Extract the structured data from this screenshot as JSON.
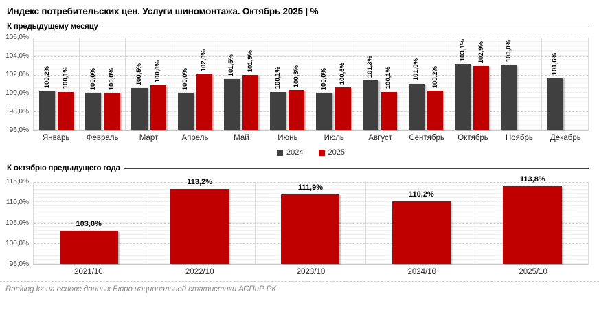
{
  "title": "Индекс потребительских цен. Услуги шиномонтажа. Октябрь 2025 | %",
  "footer": "Ranking.kz на основе данных Бюро национальной статистики АСПиР РК",
  "colors": {
    "series_2024": "#404040",
    "series_2025": "#C00000",
    "gridline": "#cfcfcf",
    "axis_text": "#404040"
  },
  "chart_data": [
    {
      "type": "bar",
      "title": "К предыдущему месяцу",
      "categories": [
        "Январь",
        "Февраль",
        "Март",
        "Апрель",
        "Май",
        "Июнь",
        "Июль",
        "Август",
        "Сентябрь",
        "Октябрь",
        "Ноябрь",
        "Декабрь"
      ],
      "series": [
        {
          "name": "2024",
          "color": "#404040",
          "values": [
            100.2,
            100.0,
            100.5,
            100.0,
            101.5,
            100.1,
            100.0,
            101.3,
            101.0,
            103.1,
            103.0,
            101.6
          ],
          "labels": [
            "100,2%",
            "100,0%",
            "100,5%",
            "100,0%",
            "101,5%",
            "100,1%",
            "100,0%",
            "101,3%",
            "101,0%",
            "103,1%",
            "103,0%",
            "101,6%"
          ]
        },
        {
          "name": "2025",
          "color": "#C00000",
          "values": [
            100.1,
            100.0,
            100.8,
            102.0,
            101.9,
            100.3,
            100.6,
            100.1,
            100.2,
            102.9,
            null,
            null
          ],
          "labels": [
            "100,1%",
            "100,0%",
            "100,8%",
            "102,0%",
            "101,9%",
            "100,3%",
            "100,6%",
            "100,1%",
            "100,2%",
            "102,9%",
            null,
            null
          ]
        }
      ],
      "ylim": [
        96,
        106
      ],
      "yticks": [
        "106,0%",
        "104,0%",
        "102,0%",
        "100,0%",
        "98,0%",
        "96,0%"
      ],
      "legend": [
        "2024",
        "2025"
      ],
      "legend_position": "bottom-center",
      "grid": "on"
    },
    {
      "type": "bar",
      "title": "К октябрю предыдущего года",
      "categories": [
        "2021/10",
        "2022/10",
        "2023/10",
        "2024/10",
        "2025/10"
      ],
      "values": [
        103.0,
        113.2,
        111.9,
        110.2,
        113.8
      ],
      "labels": [
        "103,0%",
        "113,2%",
        "111,9%",
        "110,2%",
        "113,8%"
      ],
      "bar_color": "#C00000",
      "ylim": [
        95,
        115
      ],
      "yticks": [
        "115,0%",
        "110,0%",
        "105,0%",
        "100,0%",
        "95,0%"
      ],
      "grid": "on"
    }
  ]
}
